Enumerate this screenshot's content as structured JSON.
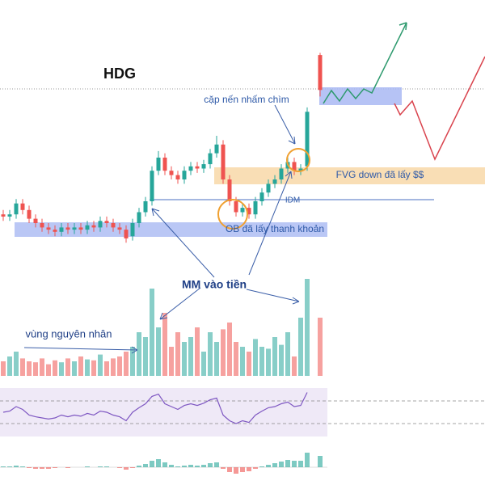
{
  "chart_data": {
    "type": "candlestick",
    "title": "HDG",
    "annotations": [
      "cặp nến nhấm chìm",
      "FVG down đã lấy $$",
      "IDM",
      "OB đã lấy thanh khoản",
      "MM vào tiền",
      "vùng nguyên nhân"
    ],
    "up_color": "#26a69a",
    "down_color": "#ef5350",
    "ylim": [
      0,
      100
    ],
    "open": [
      24,
      23,
      24,
      29,
      26,
      22,
      20,
      18,
      17,
      16,
      18,
      17,
      18,
      17,
      19,
      18,
      21,
      20,
      18,
      17,
      14,
      20,
      25,
      30,
      44,
      50,
      44,
      42,
      40,
      44,
      46,
      45,
      47,
      52,
      56,
      40,
      30,
      25,
      27,
      24,
      30,
      34,
      38,
      40,
      45,
      48,
      44,
      46,
      null,
      97
    ],
    "high": [
      26,
      26,
      31,
      31,
      28,
      24,
      22,
      20,
      19,
      20,
      20,
      20,
      20,
      21,
      21,
      23,
      23,
      22,
      20,
      19,
      22,
      27,
      32,
      46,
      53,
      52,
      46,
      44,
      46,
      48,
      48,
      49,
      54,
      60,
      58,
      42,
      32,
      29,
      29,
      32,
      36,
      40,
      42,
      47,
      50,
      50,
      47,
      73,
      null,
      98
    ],
    "low": [
      21,
      21,
      22,
      24,
      20,
      18,
      16,
      15,
      14,
      14,
      15,
      15,
      15,
      15,
      16,
      16,
      18,
      16,
      15,
      11,
      12,
      18,
      23,
      28,
      42,
      42,
      40,
      38,
      38,
      42,
      43,
      43,
      45,
      50,
      38,
      28,
      23,
      23,
      22,
      22,
      28,
      32,
      36,
      38,
      43,
      42,
      42,
      44,
      null,
      78
    ],
    "close": [
      23,
      24,
      29,
      26,
      22,
      20,
      18,
      17,
      16,
      18,
      17,
      18,
      17,
      19,
      18,
      21,
      20,
      18,
      17,
      13,
      20,
      25,
      30,
      44,
      50,
      44,
      42,
      40,
      44,
      46,
      45,
      47,
      52,
      56,
      40,
      30,
      25,
      27,
      24,
      30,
      34,
      38,
      40,
      45,
      48,
      44,
      45,
      71,
      null,
      81
    ],
    "volume": {
      "ylim": [
        0,
        100
      ],
      "values": [
        15,
        20,
        25,
        18,
        15,
        14,
        18,
        12,
        16,
        14,
        18,
        15,
        20,
        17,
        16,
        22,
        15,
        18,
        20,
        25,
        30,
        45,
        40,
        90,
        50,
        65,
        30,
        45,
        35,
        40,
        50,
        25,
        45,
        35,
        48,
        55,
        35,
        30,
        25,
        38,
        30,
        28,
        40,
        32,
        45,
        20,
        60,
        100,
        null,
        60
      ]
    },
    "rsi": {
      "ylim": [
        0,
        100
      ],
      "levels": [
        30,
        70
      ],
      "color": "#7e57c2",
      "values": [
        50,
        52,
        60,
        55,
        45,
        42,
        40,
        38,
        40,
        45,
        42,
        45,
        43,
        48,
        45,
        52,
        50,
        45,
        42,
        35,
        50,
        58,
        65,
        78,
        82,
        65,
        60,
        55,
        62,
        65,
        62,
        66,
        72,
        75,
        45,
        35,
        30,
        35,
        32,
        45,
        52,
        58,
        60,
        65,
        68,
        60,
        62,
        85,
        null,
        72
      ]
    },
    "macd_histogram": {
      "ylim": [
        -20,
        30
      ],
      "values": [
        1,
        1,
        2,
        1,
        -1,
        -2,
        -2,
        -2,
        -1,
        0,
        -1,
        0,
        0,
        1,
        0,
        1,
        1,
        0,
        -1,
        -3,
        -1,
        2,
        4,
        8,
        10,
        6,
        3,
        1,
        2,
        3,
        2,
        3,
        5,
        6,
        -2,
        -6,
        -8,
        -6,
        -5,
        -2,
        1,
        3,
        5,
        7,
        9,
        8,
        8,
        18,
        null,
        14
      ]
    }
  }
}
